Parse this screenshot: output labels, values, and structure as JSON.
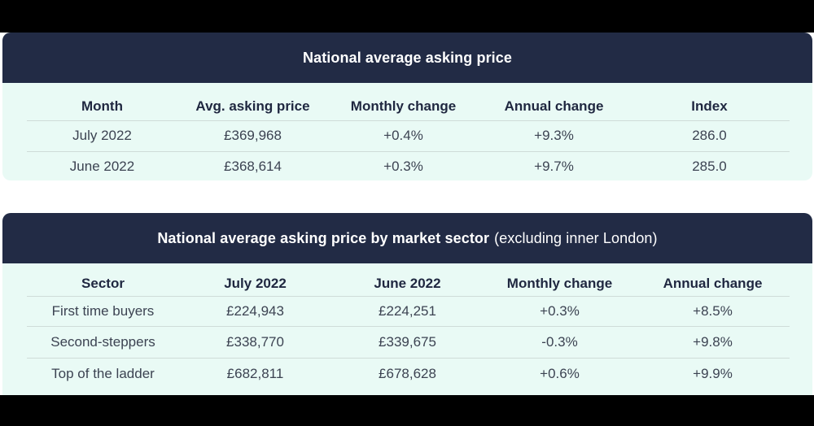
{
  "table1": {
    "title": "National average asking price",
    "headers": [
      "Month",
      "Avg. asking price",
      "Monthly change",
      "Annual change",
      "Index"
    ],
    "rows": [
      [
        "July 2022",
        "£369,968",
        "+0.4%",
        "+9.3%",
        "286.0"
      ],
      [
        "June 2022",
        "£368,614",
        "+0.3%",
        "+9.7%",
        "285.0"
      ]
    ]
  },
  "table2": {
    "title": "National average asking price by market sector",
    "subtitle": "(excluding inner London)",
    "headers": [
      "Sector",
      "July 2022",
      "June 2022",
      "Monthly change",
      "Annual change"
    ],
    "rows": [
      [
        "First time buyers",
        "£224,943",
        "£224,251",
        "+0.3%",
        "+8.5%"
      ],
      [
        "Second-steppers",
        "£338,770",
        "£339,675",
        "-0.3%",
        "+9.8%"
      ],
      [
        "Top of the ladder",
        "£682,811",
        "£678,628",
        "+0.6%",
        "+9.9%"
      ]
    ]
  },
  "colors": {
    "header_bg": "#222b45",
    "table_bg": "#e9faf5",
    "header_text": "#ffffff"
  }
}
